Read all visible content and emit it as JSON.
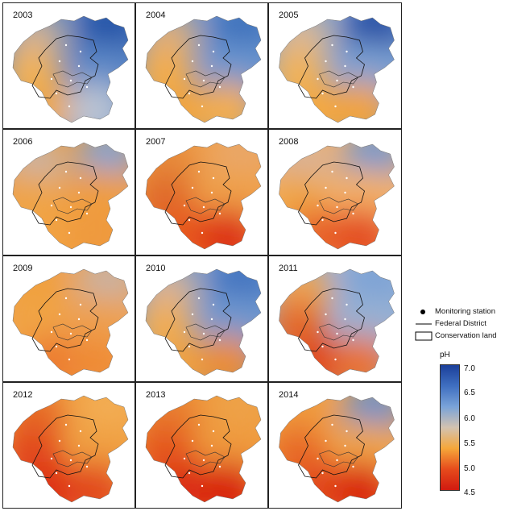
{
  "panels": [
    {
      "year": "2003",
      "color": {
        "nw": "#c9b09a",
        "ne": "#1f4fa5",
        "w": "#f3b25a",
        "e": "#5a86c6",
        "sw": "#f0a640",
        "se": "#b9c3d3"
      }
    },
    {
      "year": "2004",
      "color": {
        "nw": "#d9ad80",
        "ne": "#3a6fbb",
        "w": "#f4ad4e",
        "e": "#6b95cf",
        "sw": "#f2a43c",
        "se": "#f3ad50"
      }
    },
    {
      "year": "2005",
      "color": {
        "nw": "#d6b79a",
        "ne": "#1c4aa2",
        "w": "#f1b35c",
        "e": "#7aa0d3",
        "sw": "#f5a940",
        "se": "#f2a33c"
      }
    },
    {
      "year": "2006",
      "color": {
        "nw": "#c8b4a6",
        "ne": "#7fa3d2",
        "w": "#efa448",
        "e": "#ef9d3f",
        "sw": "#f2a343",
        "se": "#ef9a3d"
      }
    },
    {
      "year": "2007",
      "color": {
        "nw": "#e68a3a",
        "ne": "#e9a76a",
        "w": "#e06a2a",
        "e": "#efa04a",
        "sw": "#e8581f",
        "se": "#dd3216"
      }
    },
    {
      "year": "2008",
      "color": {
        "nw": "#d7b39a",
        "ne": "#6e98d0",
        "w": "#f0a545",
        "e": "#f3b066",
        "sw": "#e8652a",
        "se": "#e44e22"
      }
    },
    {
      "year": "2009",
      "color": {
        "nw": "#f0a03e",
        "ne": "#c8b2a4",
        "w": "#f1a444",
        "e": "#eea050",
        "sw": "#ec7a30",
        "se": "#ef8b35"
      }
    },
    {
      "year": "2010",
      "color": {
        "nw": "#d4b29a",
        "ne": "#3f72bf",
        "w": "#f2ad55",
        "e": "#6f98cf",
        "sw": "#f0a342",
        "se": "#eb8c36"
      }
    },
    {
      "year": "2011",
      "color": {
        "nw": "#efa552",
        "ne": "#7ba2d6",
        "w": "#e56a2a",
        "e": "#97b1d3",
        "sw": "#e0441c",
        "se": "#e97230"
      }
    },
    {
      "year": "2012",
      "color": {
        "nw": "#e66a28",
        "ne": "#f3ae55",
        "w": "#e24a1e",
        "e": "#f0a042",
        "sw": "#de2e14",
        "se": "#e24a1f"
      }
    },
    {
      "year": "2013",
      "color": {
        "nw": "#e77a2e",
        "ne": "#eea348",
        "w": "#e5561f",
        "e": "#ef9a3d",
        "sw": "#db2d13",
        "se": "#d8220f"
      }
    },
    {
      "year": "2014",
      "color": {
        "nw": "#ef9a3e",
        "ne": "#6891cb",
        "w": "#e86a28",
        "e": "#f0a446",
        "sw": "#e24a1e",
        "se": "#d92710"
      }
    }
  ],
  "legend": {
    "items": [
      {
        "label": "Monitoring station",
        "symbol": "dot"
      },
      {
        "label": "Federal District",
        "symbol": "line"
      },
      {
        "label": "Conservation land",
        "symbol": "box"
      }
    ],
    "colorbar": {
      "title": "pH",
      "ticks": [
        "7.0",
        "6.5",
        "6.0",
        "5.5",
        "5.0",
        "4.5"
      ],
      "range": [
        4.5,
        7.0
      ],
      "colors": [
        "#1b3f9a",
        "#3f6fc0",
        "#7aa3d9",
        "#d3c2b0",
        "#f5a73a",
        "#e64b1c",
        "#d11a10"
      ]
    }
  }
}
